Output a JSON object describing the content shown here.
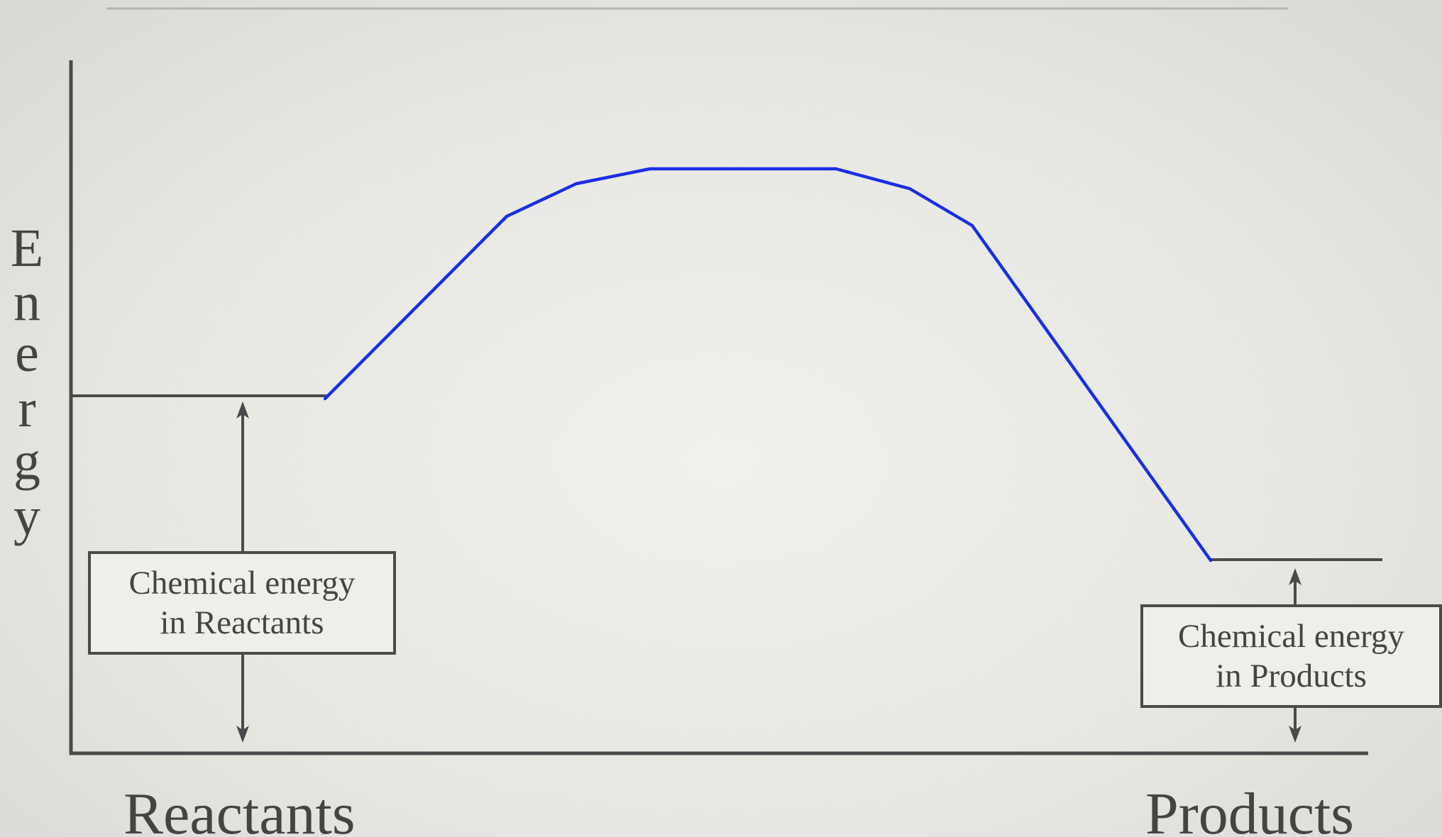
{
  "diagram": {
    "y_axis_label": [
      "E",
      "n",
      "e",
      "r",
      "g",
      "y"
    ],
    "x_labels": {
      "left": "Reactants",
      "right": "Products"
    },
    "callouts": {
      "reactants": [
        "Chemical energy",
        "in Reactants"
      ],
      "products": [
        "Chemical energy",
        "in Products"
      ]
    },
    "colors": {
      "curve": "#1a2ee6",
      "axis": "#4a4a4a",
      "text": "#444444"
    }
  }
}
